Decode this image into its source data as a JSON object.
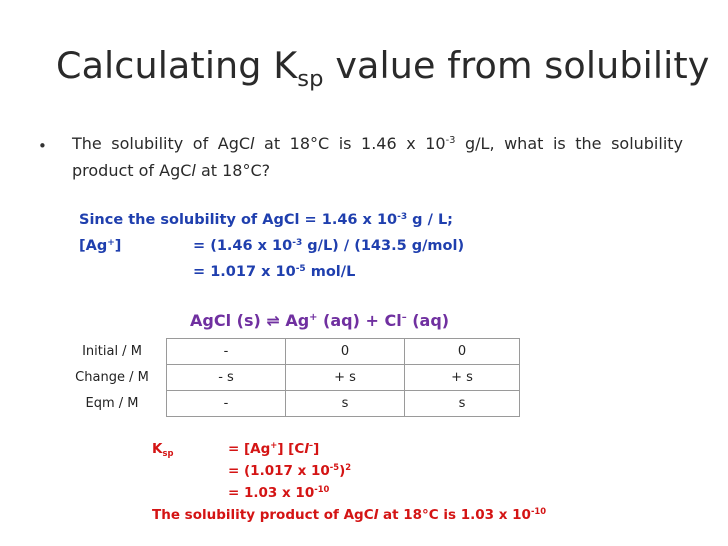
{
  "title": {
    "main": "Calculating K",
    "sub": "sp",
    "rest": " value from solubility"
  },
  "bullet": "•",
  "question": {
    "p1": "The solubility of AgC",
    "p1_italic": "l",
    "p2": " at 18°C is 1.46 x 10",
    "p2_sup": "-3",
    "p3": " g/L, what is the solubility product of AgC",
    "p3_italic": "l",
    "p4": " at 18°C?"
  },
  "working": {
    "line1_a": "Since the solubility of AgCl = 1.46 x 10",
    "line1_sup": "-3",
    "line1_b": " g / L;",
    "line2_label": "[Ag",
    "line2_label_sup": "+",
    "line2_label_end": "]",
    "line2_a": "= (1.46 x 10",
    "line2_sup": "-3",
    "line2_b": " g/L)  / (143.5 g/mol)",
    "line3_a": "= 1.017 x 10",
    "line3_sup": "-5",
    "line3_b": " mol/L"
  },
  "equation": {
    "lhs": "AgCl (s) ⇌  Ag",
    "ag_sup": "+",
    "mid": " (aq) + Cl",
    "cl_sup": "–",
    "rhs": " (aq)"
  },
  "ice_table": {
    "rows": [
      {
        "label": "Initial / M",
        "cells": [
          "-",
          "0",
          "0"
        ]
      },
      {
        "label": "Change / M",
        "cells": [
          "- s",
          "+ s",
          "+ s"
        ]
      },
      {
        "label": "Eqm / M",
        "cells": [
          "-",
          "s",
          "s"
        ]
      }
    ]
  },
  "ksp": {
    "k": "K",
    "k_sub": "sp",
    "eq1_a": "=   [Ag",
    "eq1_sup1": "+",
    "eq1_b": "] [C",
    "eq1_italic": "l",
    "eq1_sup2": "–",
    "eq1_c": "]",
    "eq2_a": "= (1.017 x 10",
    "eq2_sup": "-5",
    "eq2_b": ")",
    "eq2_sup2": "2",
    "eq3_a": "= 1.03 x 10",
    "eq3_sup": "-10",
    "conclusion_a": "The solubility product of AgC",
    "conclusion_italic": "l",
    "conclusion_b": " at 18°C is 1.03 x 10",
    "conclusion_sup": "-10"
  },
  "colors": {
    "working": "#1f3fae",
    "equation": "#7030a0",
    "answer": "#d41414",
    "title": "#2a2a2a"
  }
}
